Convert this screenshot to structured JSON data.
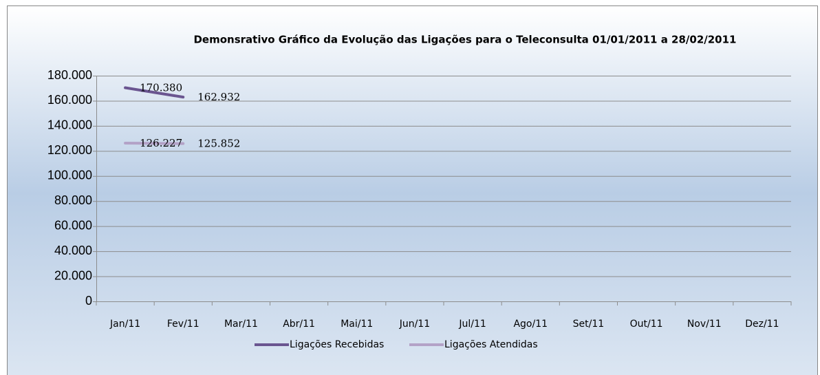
{
  "chart_data": {
    "type": "line",
    "title": "Demonsrativo Gráfico da Evolução das Ligações para o Teleconsulta 01/01/2011 a 28/02/2011",
    "categories": [
      "Jan/11",
      "Fev/11",
      "Mar/11",
      "Abr/11",
      "Mai/11",
      "Jun/11",
      "Jul/11",
      "Ago/11",
      "Set/11",
      "Out/11",
      "Nov/11",
      "Dez/11"
    ],
    "series": [
      {
        "name": "Ligações Recebidas",
        "color": "#6a5590",
        "values": [
          170380,
          162932,
          null,
          null,
          null,
          null,
          null,
          null,
          null,
          null,
          null,
          null
        ],
        "value_labels": [
          "170.380",
          "162.932",
          null,
          null,
          null,
          null,
          null,
          null,
          null,
          null,
          null,
          null
        ]
      },
      {
        "name": "Ligações Atendidas",
        "color": "#b3a2c7",
        "values": [
          126227,
          125852,
          null,
          null,
          null,
          null,
          null,
          null,
          null,
          null,
          null,
          null
        ],
        "value_labels": [
          "126.227",
          "125.852",
          null,
          null,
          null,
          null,
          null,
          null,
          null,
          null,
          null,
          null
        ]
      }
    ],
    "ylim": [
      0,
      180000
    ],
    "yticks": [
      0,
      {
        "value": 20000,
        "label": "20.000"
      },
      {
        "value": 40000,
        "label": "40.000"
      },
      {
        "value": 60000,
        "label": "60.000"
      },
      {
        "value": 80000,
        "label": "80.000"
      },
      {
        "value": 100000,
        "label": "100.000"
      },
      {
        "value": 120000,
        "label": "120.000"
      },
      {
        "value": 140000,
        "label": "140.000"
      },
      {
        "value": 160000,
        "label": "160.000"
      },
      {
        "value": 180000,
        "label": "180.000"
      }
    ],
    "grid": true,
    "legend": "bottom"
  }
}
